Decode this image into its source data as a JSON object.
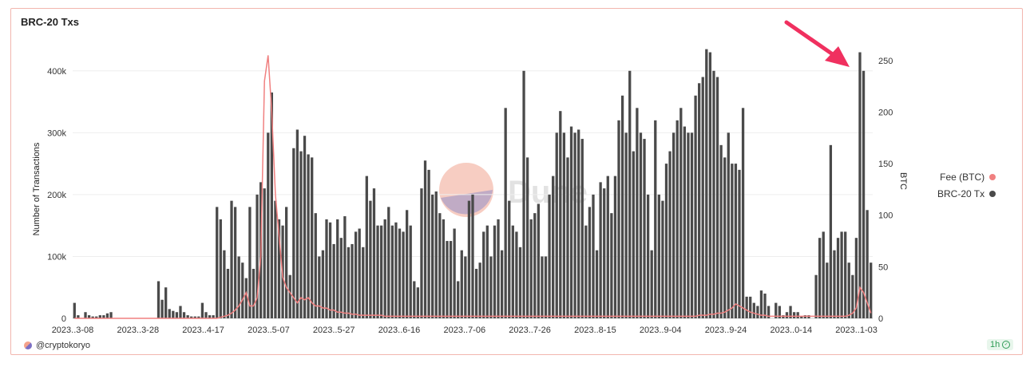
{
  "title": "BRC-20 Txs",
  "credit": "@cryptokoryo",
  "refresh_label": "1h",
  "watermark_text": "Dune",
  "colors": {
    "bar": "#4a4a4a",
    "line": "#f08080",
    "accent": "#f2b6ae",
    "arrow": "#f0305f"
  },
  "chart_data": {
    "type": "bar",
    "ylabel": "Number of Transactions",
    "y2label": "BTC",
    "ylim": [
      0,
      450000
    ],
    "y2lim": [
      0,
      270
    ],
    "yticks": [
      "0",
      "100k",
      "200k",
      "300k",
      "400k"
    ],
    "yticks_values": [
      0,
      100000,
      200000,
      300000,
      400000
    ],
    "y2ticks": [
      "0",
      "50",
      "100",
      "150",
      "200",
      "250"
    ],
    "y2ticks_values": [
      0,
      50,
      100,
      150,
      200,
      250
    ],
    "x_tick_labels": [
      "2023..3-08",
      "2023..3-28",
      "2023..4-17",
      "2023..5-07",
      "2023..5-27",
      "2023..6-16",
      "2023..7-06",
      "2023..7-26",
      "2023..8-15",
      "2023..9-04",
      "2023..9-24",
      "2023..0-14",
      "2023..1-03"
    ],
    "legend_position": "right",
    "grid": true,
    "series": [
      {
        "name": "BRC-20 Tx",
        "axis": "left",
        "type": "bar",
        "values": [
          25000,
          5000,
          0,
          10000,
          5000,
          3000,
          3000,
          5000,
          5000,
          8000,
          10000,
          0,
          0,
          0,
          0,
          0,
          0,
          0,
          0,
          0,
          0,
          0,
          0,
          60000,
          30000,
          50000,
          15000,
          12000,
          10000,
          20000,
          10000,
          5000,
          3000,
          3000,
          3000,
          25000,
          10000,
          5000,
          5000,
          180000,
          160000,
          110000,
          80000,
          190000,
          180000,
          100000,
          90000,
          65000,
          180000,
          80000,
          200000,
          220000,
          210000,
          300000,
          365000,
          190000,
          160000,
          150000,
          180000,
          70000,
          275000,
          305000,
          270000,
          295000,
          265000,
          260000,
          170000,
          100000,
          110000,
          160000,
          155000,
          120000,
          160000,
          130000,
          165000,
          115000,
          120000,
          140000,
          145000,
          115000,
          230000,
          190000,
          210000,
          150000,
          150000,
          160000,
          180000,
          150000,
          155000,
          145000,
          140000,
          175000,
          150000,
          60000,
          50000,
          210000,
          255000,
          240000,
          200000,
          205000,
          170000,
          160000,
          125000,
          125000,
          145000,
          60000,
          110000,
          100000,
          190000,
          200000,
          80000,
          90000,
          140000,
          150000,
          100000,
          150000,
          160000,
          110000,
          340000,
          190000,
          150000,
          140000,
          115000,
          400000,
          260000,
          160000,
          170000,
          185000,
          100000,
          100000,
          200000,
          230000,
          300000,
          335000,
          300000,
          260000,
          310000,
          300000,
          305000,
          290000,
          150000,
          180000,
          200000,
          110000,
          220000,
          210000,
          230000,
          170000,
          230000,
          320000,
          360000,
          300000,
          400000,
          270000,
          340000,
          300000,
          290000,
          200000,
          110000,
          320000,
          200000,
          190000,
          250000,
          270000,
          300000,
          320000,
          340000,
          310000,
          300000,
          300000,
          360000,
          380000,
          390000,
          435000,
          430000,
          400000,
          390000,
          280000,
          260000,
          300000,
          250000,
          250000,
          240000,
          340000,
          35000,
          35000,
          25000,
          20000,
          45000,
          40000,
          20000,
          0,
          25000,
          20000,
          5000,
          10000,
          20000,
          10000,
          10000,
          3000,
          5000,
          5000,
          0,
          70000,
          130000,
          140000,
          90000,
          280000,
          110000,
          130000,
          140000,
          140000,
          90000,
          70000,
          130000,
          430000,
          400000,
          175000,
          90000
        ],
        "color": "#4a4a4a"
      },
      {
        "name": "Fee (BTC)",
        "axis": "right",
        "type": "line",
        "values": [
          0,
          0,
          0,
          0,
          0,
          0,
          0,
          0,
          0,
          0,
          0,
          0,
          0,
          0,
          0,
          0,
          0,
          0,
          0,
          0,
          0,
          0,
          0,
          0,
          0,
          0,
          0,
          0,
          0,
          0,
          0,
          0,
          0,
          0,
          0,
          0,
          0,
          0,
          0,
          0,
          1,
          2,
          3,
          5,
          8,
          12,
          18,
          25,
          12,
          12,
          20,
          60,
          230,
          255,
          200,
          120,
          80,
          40,
          30,
          25,
          20,
          15,
          20,
          18,
          20,
          15,
          12,
          12,
          10,
          10,
          8,
          8,
          6,
          6,
          5,
          5,
          4,
          4,
          3,
          3,
          3,
          3,
          3,
          3,
          3,
          2,
          2,
          2,
          2,
          2,
          2,
          2,
          2,
          2,
          2,
          2,
          2,
          2,
          2,
          2,
          2,
          2,
          2,
          2,
          2,
          2,
          2,
          2,
          2,
          2,
          2,
          2,
          2,
          2,
          2,
          2,
          2,
          2,
          2,
          2,
          2,
          2,
          2,
          2,
          2,
          2,
          2,
          2,
          2,
          2,
          2,
          2,
          2,
          2,
          2,
          2,
          2,
          2,
          2,
          2,
          2,
          2,
          2,
          2,
          2,
          2,
          2,
          2,
          2,
          2,
          2,
          2,
          2,
          2,
          2,
          2,
          2,
          2,
          2,
          2,
          2,
          2,
          2,
          2,
          2,
          2,
          2,
          2,
          2,
          2,
          2,
          3,
          3,
          3,
          4,
          4,
          5,
          5,
          6,
          8,
          10,
          14,
          12,
          10,
          8,
          6,
          5,
          4,
          3,
          3,
          2,
          2,
          2,
          2,
          2,
          2,
          2,
          2,
          2,
          2,
          2,
          2,
          2,
          2,
          2,
          2,
          2,
          2,
          2,
          2,
          2,
          2,
          3,
          5,
          10,
          30,
          25,
          15,
          5
        ],
        "color": "#f08080"
      }
    ]
  }
}
